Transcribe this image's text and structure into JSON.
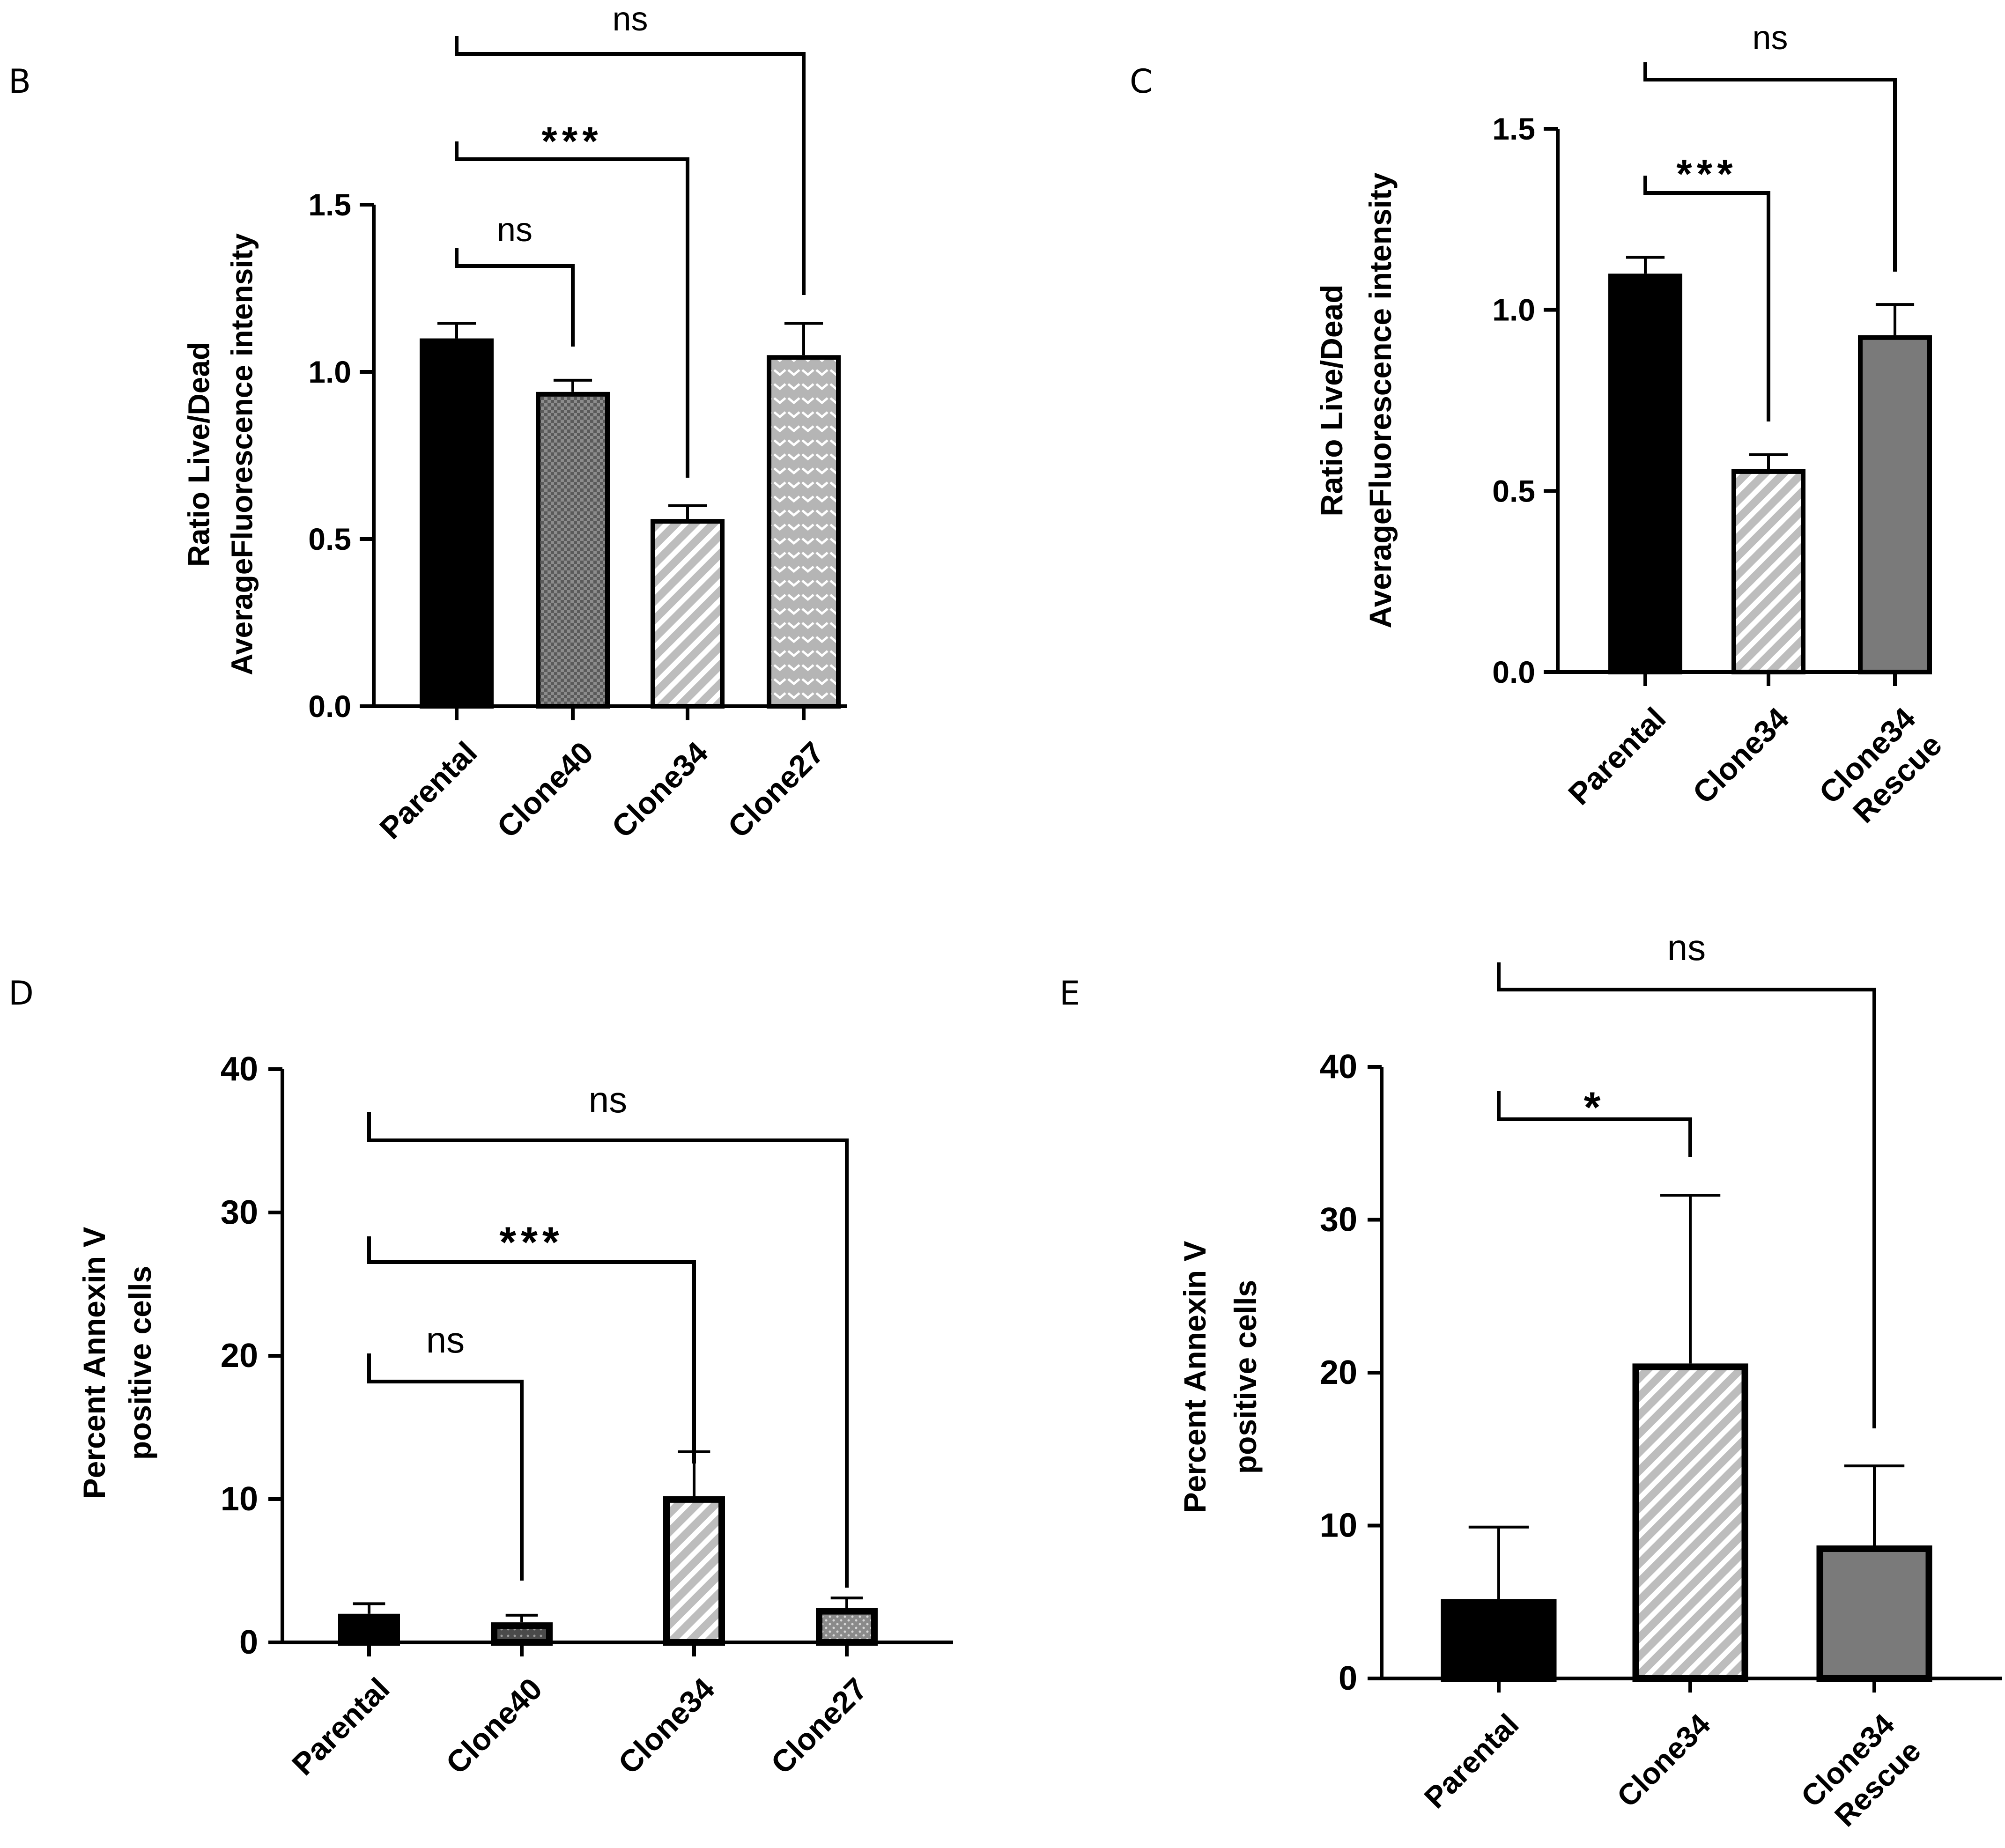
{
  "colors": {
    "black": "#000000",
    "dark_gray": "#555555",
    "medium_gray": "#7a7a7a",
    "light_gray": "#bfbfbf",
    "white": "#ffffff"
  },
  "chart_data": [
    {
      "panel": "B",
      "type": "bar",
      "ylabel_lines": [
        "Ratio Live/Dead",
        "AverageFluorescence intensity"
      ],
      "ylim": [
        0,
        1.5
      ],
      "yticks": [
        "0.0",
        "0.5",
        "1.0",
        "1.5"
      ],
      "ytick_values": [
        0,
        0.5,
        1.0,
        1.5
      ],
      "categories": [
        "Parental",
        "Clone40",
        "Clone34",
        "Clone27"
      ],
      "values": [
        1.1,
        0.94,
        0.56,
        1.05
      ],
      "errors": [
        0.045,
        0.035,
        0.04,
        0.095
      ],
      "fills": [
        "solid-black",
        "checker",
        "diagonal-stripes",
        "chevron"
      ],
      "comparisons": [
        {
          "from": "Parental",
          "to": "Clone40",
          "label": "ns"
        },
        {
          "from": "Parental",
          "to": "Clone34",
          "label": "***"
        },
        {
          "from": "Parental",
          "to": "Clone27",
          "label": "ns"
        }
      ]
    },
    {
      "panel": "C",
      "type": "bar",
      "ylabel_lines": [
        "Ratio Live/Dead",
        "AverageFluorescence intensity"
      ],
      "ylim": [
        0,
        1.5
      ],
      "yticks": [
        "0.0",
        "0.5",
        "1.0",
        "1.5"
      ],
      "ytick_values": [
        0,
        0.5,
        1.0,
        1.5
      ],
      "categories": [
        "Parental",
        "Clone34",
        "Clone34 Rescue"
      ],
      "category_lines": [
        [
          "Parental"
        ],
        [
          "Clone34"
        ],
        [
          "Clone34",
          "Rescue"
        ]
      ],
      "values": [
        1.1,
        0.56,
        0.93
      ],
      "errors": [
        0.045,
        0.04,
        0.085
      ],
      "fills": [
        "solid-black",
        "diagonal-stripes",
        "solid-gray"
      ],
      "comparisons": [
        {
          "from": "Parental",
          "to": "Clone34",
          "label": "***"
        },
        {
          "from": "Parental",
          "to": "Clone34 Rescue",
          "label": "ns"
        }
      ]
    },
    {
      "panel": "D",
      "type": "bar",
      "ylabel_lines": [
        "Percent Annexin V",
        "positive cells"
      ],
      "ylim": [
        0,
        40
      ],
      "yticks": [
        "0",
        "10",
        "20",
        "30",
        "40"
      ],
      "ytick_values": [
        0,
        10,
        20,
        30,
        40
      ],
      "categories": [
        "Parental",
        "Clone40",
        "Clone34",
        "Clone27"
      ],
      "values": [
        2.0,
        1.4,
        10.2,
        2.4
      ],
      "errors": [
        0.7,
        0.5,
        3.1,
        0.7
      ],
      "fills": [
        "solid-black",
        "dotted-dark",
        "diagonal-stripes",
        "speckled"
      ],
      "comparisons": [
        {
          "from": "Parental",
          "to": "Clone40",
          "label": "ns"
        },
        {
          "from": "Parental",
          "to": "Clone34",
          "label": "***"
        },
        {
          "from": "Parental",
          "to": "Clone27",
          "label": "ns"
        }
      ]
    },
    {
      "panel": "E",
      "type": "bar",
      "ylabel_lines": [
        "Percent Annexin V",
        "positive cells"
      ],
      "ylim": [
        0,
        40
      ],
      "yticks": [
        "0",
        "10",
        "20",
        "30",
        "40"
      ],
      "ytick_values": [
        0,
        10,
        20,
        30,
        40
      ],
      "categories": [
        "Parental",
        "Clone34",
        "Clone34 Rescue"
      ],
      "category_lines": [
        [
          "Parental"
        ],
        [
          "Clone34"
        ],
        [
          "Clone34",
          "Rescue"
        ]
      ],
      "values": [
        5.2,
        20.6,
        8.7
      ],
      "errors": [
        4.7,
        11.0,
        5.2
      ],
      "fills": [
        "solid-black",
        "diagonal-stripes",
        "solid-gray"
      ],
      "comparisons": [
        {
          "from": "Parental",
          "to": "Clone34",
          "label": "*"
        },
        {
          "from": "Parental",
          "to": "Clone34 Rescue",
          "label": "ns"
        }
      ]
    }
  ]
}
